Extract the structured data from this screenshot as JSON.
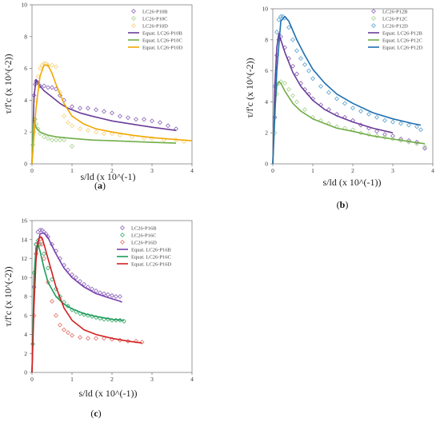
{
  "chart_data": [
    {
      "type": "scatter",
      "caption": "a",
      "xlabel": "s/ld (x 10^(-1)",
      "ylabel": "τ/f'c (x 10^(-2))",
      "xlim": [
        0,
        4
      ],
      "ylim": [
        0,
        10
      ],
      "xticks": [
        "0",
        "1",
        "2",
        "3",
        "4"
      ],
      "yticks": [
        "0",
        "2",
        "4",
        "6",
        "8",
        "10"
      ],
      "grid": false,
      "legend_position": "top-right",
      "series": [
        {
          "name": "LC26-P10B",
          "kind": "markers",
          "color": "#8a63b8",
          "x": [
            0.05,
            0.08,
            0.1,
            0.15,
            0.2,
            0.3,
            0.4,
            0.5,
            0.6,
            0.7,
            0.8,
            1.0,
            1.2,
            1.4,
            1.6,
            1.8,
            2.0,
            2.2,
            2.4,
            2.6,
            2.8,
            3.0,
            3.2,
            3.4,
            3.6
          ],
          "y": [
            4.3,
            5.0,
            5.2,
            5.1,
            4.9,
            4.9,
            4.8,
            4.8,
            4.7,
            4.3,
            4.0,
            3.6,
            3.5,
            3.5,
            3.4,
            3.3,
            3.2,
            3.0,
            2.9,
            2.8,
            2.8,
            2.7,
            2.6,
            2.4,
            2.2
          ]
        },
        {
          "name": "LC26-P10C",
          "kind": "markers",
          "color": "#a8d08d",
          "x": [
            0.02,
            0.04,
            0.06,
            0.08,
            0.1,
            0.15,
            0.2,
            0.3,
            0.4,
            0.5,
            0.6,
            0.7,
            0.8,
            1.0
          ],
          "y": [
            1.2,
            2.8,
            2.8,
            2.8,
            2.5,
            2.2,
            1.9,
            1.7,
            1.6,
            1.5,
            1.5,
            1.5,
            1.5,
            1.1
          ]
        },
        {
          "name": "LC26-P10D",
          "kind": "markers",
          "color": "#f2d27a",
          "x": [
            0.05,
            0.1,
            0.15,
            0.2,
            0.25,
            0.3,
            0.35,
            0.4,
            0.5,
            0.6,
            0.7,
            0.8,
            0.9,
            1.0,
            1.2,
            1.4,
            1.6,
            1.8,
            2.0,
            2.2,
            2.5,
            2.8,
            3.0,
            3.3,
            3.6,
            3.8
          ],
          "y": [
            2.0,
            4.0,
            5.5,
            6.0,
            6.2,
            6.3,
            6.3,
            6.2,
            6.2,
            6.1,
            4.5,
            3.0,
            2.6,
            2.4,
            2.2,
            2.1,
            2.0,
            1.9,
            1.9,
            1.8,
            1.7,
            1.6,
            1.6,
            1.5,
            1.5,
            1.4
          ]
        },
        {
          "name": "Equat. LC26-P10B",
          "kind": "line",
          "color": "#6a3d9a",
          "x": [
            0,
            0.05,
            0.1,
            0.2,
            0.3,
            0.5,
            0.7,
            0.9,
            1.2,
            1.5,
            2.0,
            2.5,
            3.0,
            3.6
          ],
          "y": [
            0,
            4.2,
            5.3,
            4.9,
            4.6,
            4.2,
            3.8,
            3.5,
            3.2,
            3.0,
            2.7,
            2.5,
            2.3,
            2.1
          ]
        },
        {
          "name": "Equat. LC26-P10C",
          "kind": "line",
          "color": "#70ad47",
          "x": [
            0,
            0.03,
            0.06,
            0.1,
            0.2,
            0.4,
            0.6,
            1.0,
            1.5,
            2.0,
            2.5,
            3.0,
            3.6
          ],
          "y": [
            0,
            2.5,
            2.7,
            2.3,
            2.0,
            1.8,
            1.7,
            1.6,
            1.5,
            1.45,
            1.4,
            1.35,
            1.3
          ]
        },
        {
          "name": "Equat. LC26-P10D",
          "kind": "line",
          "color": "#f0a800",
          "x": [
            0,
            0.1,
            0.2,
            0.3,
            0.4,
            0.5,
            0.6,
            0.8,
            1.0,
            1.3,
            1.6,
            2.0,
            2.5,
            3.0,
            3.5,
            4.0
          ],
          "y": [
            0,
            3.5,
            5.5,
            6.2,
            6.2,
            5.7,
            5.0,
            3.8,
            3.0,
            2.5,
            2.2,
            2.0,
            1.8,
            1.65,
            1.55,
            1.45
          ]
        }
      ]
    },
    {
      "type": "scatter",
      "caption": "b",
      "xlabel": "s/ld (x 10^(-1))",
      "ylabel": "τ/f'c (x 10^(-2))",
      "xlim": [
        0,
        4
      ],
      "ylim": [
        0,
        10
      ],
      "xticks": [
        "0",
        "1",
        "2",
        "3",
        "4"
      ],
      "yticks": [
        "0",
        "2",
        "4",
        "6",
        "8",
        "10"
      ],
      "grid": false,
      "legend_position": "top-right",
      "series": [
        {
          "name": "LC26-P12B",
          "kind": "markers",
          "color": "#8a63b8",
          "x": [
            0.05,
            0.1,
            0.15,
            0.2,
            0.3,
            0.4,
            0.5,
            0.6,
            0.7,
            0.8,
            0.9,
            1.0,
            1.2,
            1.4,
            1.6,
            1.8,
            2.0,
            2.2,
            2.4,
            2.6,
            2.8,
            3.0,
            3.2,
            3.4,
            3.6,
            3.8
          ],
          "y": [
            3.0,
            7.0,
            8.0,
            8.2,
            7.5,
            6.8,
            6.3,
            5.8,
            5.2,
            4.8,
            4.5,
            4.2,
            3.8,
            3.5,
            3.2,
            3.0,
            2.8,
            2.5,
            2.3,
            2.1,
            1.9,
            1.8,
            1.6,
            1.5,
            1.4,
            1.0
          ]
        },
        {
          "name": "LC26-P12C",
          "kind": "markers",
          "color": "#a8d08d",
          "x": [
            0.05,
            0.1,
            0.15,
            0.2,
            0.3,
            0.4,
            0.5,
            0.6,
            0.8,
            1.0,
            1.2,
            1.4,
            1.6,
            1.8,
            2.0,
            2.2,
            2.4,
            2.6,
            2.8,
            3.0,
            3.2,
            3.4,
            3.6,
            3.8
          ],
          "y": [
            2.0,
            4.5,
            5.2,
            5.3,
            5.2,
            4.8,
            4.4,
            4.0,
            3.5,
            3.0,
            2.8,
            2.6,
            2.4,
            2.3,
            2.2,
            2.0,
            1.9,
            1.8,
            1.7,
            1.6,
            1.5,
            1.4,
            1.3,
            1.1
          ]
        },
        {
          "name": "LC26-P12D",
          "kind": "markers",
          "color": "#5ba3cf",
          "x": [
            0.05,
            0.1,
            0.15,
            0.2,
            0.25,
            0.3,
            0.4,
            0.5,
            0.6,
            0.7,
            0.8,
            0.9,
            1.0,
            1.2,
            1.4,
            1.6,
            1.8,
            2.0,
            2.2,
            2.4,
            2.6,
            2.8,
            3.0,
            3.2,
            3.4,
            3.6,
            3.7
          ],
          "y": [
            5.0,
            8.5,
            9.3,
            9.5,
            9.5,
            9.4,
            8.8,
            8.0,
            7.3,
            6.8,
            6.4,
            6.0,
            5.5,
            5.0,
            4.6,
            4.2,
            3.9,
            3.6,
            3.4,
            3.2,
            3.0,
            2.8,
            2.7,
            2.6,
            2.5,
            2.4,
            2.2
          ]
        },
        {
          "name": "Equat. LC26-P12B",
          "kind": "line",
          "color": "#6a3d9a",
          "x": [
            0,
            0.05,
            0.1,
            0.15,
            0.2,
            0.3,
            0.5,
            0.7,
            1.0,
            1.3,
            1.6,
            2.0,
            2.5,
            3.0
          ],
          "y": [
            0,
            5.0,
            7.5,
            8.4,
            8.0,
            7.2,
            5.9,
            5.0,
            4.1,
            3.5,
            3.1,
            2.7,
            2.3,
            2.0
          ]
        },
        {
          "name": "Equat. LC26-P12C",
          "kind": "line",
          "color": "#70ad47",
          "x": [
            0,
            0.05,
            0.1,
            0.15,
            0.2,
            0.3,
            0.5,
            0.7,
            1.0,
            1.3,
            1.6,
            2.0,
            2.5,
            3.0,
            3.5,
            3.8
          ],
          "y": [
            0,
            3.5,
            5.0,
            5.3,
            5.2,
            4.7,
            3.9,
            3.4,
            2.9,
            2.6,
            2.3,
            2.1,
            1.8,
            1.6,
            1.4,
            1.3
          ]
        },
        {
          "name": "Equat. LC26-P12D",
          "kind": "line",
          "color": "#1f6fb0",
          "x": [
            0,
            0.05,
            0.1,
            0.2,
            0.3,
            0.4,
            0.6,
            0.8,
            1.0,
            1.3,
            1.6,
            2.0,
            2.5,
            3.0,
            3.5,
            3.7
          ],
          "y": [
            0,
            3.0,
            6.0,
            9.2,
            9.5,
            9.2,
            8.0,
            7.0,
            6.1,
            5.2,
            4.5,
            3.9,
            3.3,
            2.9,
            2.6,
            2.5
          ]
        }
      ]
    },
    {
      "type": "scatter",
      "caption": "c",
      "xlabel": "s/ld (x 10^(-1))",
      "ylabel": "τ/f'c (x 10^(-2))",
      "xlim": [
        0,
        4
      ],
      "ylim": [
        0,
        16
      ],
      "xticks": [
        "0",
        "1",
        "2",
        "3",
        "4"
      ],
      "yticks": [
        "0",
        "2",
        "4",
        "6",
        "8",
        "10",
        "12",
        "14",
        "16"
      ],
      "grid": false,
      "legend_position": "top-right",
      "series": [
        {
          "name": "LC26-P16B",
          "kind": "markers",
          "color": "#8a63b8",
          "x": [
            0.05,
            0.1,
            0.15,
            0.2,
            0.25,
            0.3,
            0.35,
            0.4,
            0.5,
            0.6,
            0.7,
            0.8,
            0.9,
            1.0,
            1.1,
            1.2,
            1.3,
            1.4,
            1.5,
            1.6,
            1.7,
            1.8,
            1.9,
            2.0,
            2.1,
            2.2
          ],
          "y": [
            9.0,
            13.5,
            14.8,
            15.0,
            15.0,
            14.8,
            14.6,
            14.3,
            13.5,
            12.8,
            12.0,
            11.3,
            10.8,
            10.3,
            10.0,
            9.6,
            9.3,
            9.0,
            8.8,
            8.6,
            8.4,
            8.3,
            8.2,
            8.1,
            8.0,
            8.0
          ]
        },
        {
          "name": "LC26-P16C",
          "kind": "markers",
          "color": "#3aa86b",
          "x": [
            0.02,
            0.05,
            0.1,
            0.15,
            0.2,
            0.3,
            0.4,
            0.5,
            0.6,
            0.7,
            0.8,
            0.9,
            1.0,
            1.1,
            1.2,
            1.3,
            1.4,
            1.5,
            1.6,
            1.7,
            1.8,
            1.9,
            2.0,
            2.1,
            2.2,
            2.3
          ],
          "y": [
            3.0,
            10.5,
            13.5,
            13.9,
            13.5,
            12.5,
            11.0,
            9.8,
            8.8,
            8.0,
            7.4,
            7.0,
            6.6,
            6.4,
            6.2,
            6.1,
            6.0,
            5.9,
            5.8,
            5.7,
            5.6,
            5.6,
            5.5,
            5.5,
            5.5,
            5.4
          ]
        },
        {
          "name": "LC26-P16D",
          "kind": "markers",
          "color": "#e0706a",
          "x": [
            0.05,
            0.1,
            0.15,
            0.2,
            0.25,
            0.3,
            0.4,
            0.5,
            0.6,
            0.7,
            0.8,
            0.9,
            1.0,
            1.2,
            1.4,
            1.6,
            1.8,
            2.0,
            2.2,
            2.4,
            2.6,
            2.75
          ],
          "y": [
            6.0,
            12.5,
            13.6,
            14.0,
            13.5,
            12.0,
            9.5,
            7.5,
            6.0,
            5.0,
            4.5,
            4.2,
            3.9,
            3.7,
            3.6,
            3.6,
            3.6,
            3.5,
            3.4,
            3.3,
            3.3,
            3.2
          ]
        },
        {
          "name": "Equat. LC26-P16B",
          "kind": "line",
          "color": "#7b3fb0",
          "x": [
            0,
            0.05,
            0.1,
            0.2,
            0.3,
            0.4,
            0.6,
            0.8,
            1.0,
            1.3,
            1.6,
            1.9,
            2.2,
            2.25
          ],
          "y": [
            0,
            8.5,
            12.5,
            14.6,
            14.7,
            14.2,
            12.5,
            11.0,
            10.0,
            9.0,
            8.3,
            7.9,
            7.5,
            7.4
          ]
        },
        {
          "name": "Equat. LC26-P16C",
          "kind": "line",
          "color": "#1f9a5c",
          "x": [
            0,
            0.05,
            0.1,
            0.15,
            0.2,
            0.3,
            0.4,
            0.6,
            0.8,
            1.0,
            1.3,
            1.6,
            2.0,
            2.3
          ],
          "y": [
            0,
            10.0,
            13.2,
            13.5,
            12.8,
            11.0,
            9.5,
            8.0,
            7.2,
            6.7,
            6.2,
            5.9,
            5.6,
            5.5
          ]
        },
        {
          "name": "Equat. LC26-P16D",
          "kind": "line",
          "color": "#d42020",
          "x": [
            0,
            0.05,
            0.1,
            0.15,
            0.2,
            0.25,
            0.3,
            0.4,
            0.6,
            0.8,
            1.0,
            1.3,
            1.6,
            2.0,
            2.4,
            2.75
          ],
          "y": [
            0,
            7.0,
            11.8,
            13.8,
            14.3,
            14.2,
            13.5,
            12.0,
            9.0,
            6.8,
            5.5,
            4.5,
            4.0,
            3.6,
            3.3,
            3.1
          ]
        }
      ]
    }
  ]
}
